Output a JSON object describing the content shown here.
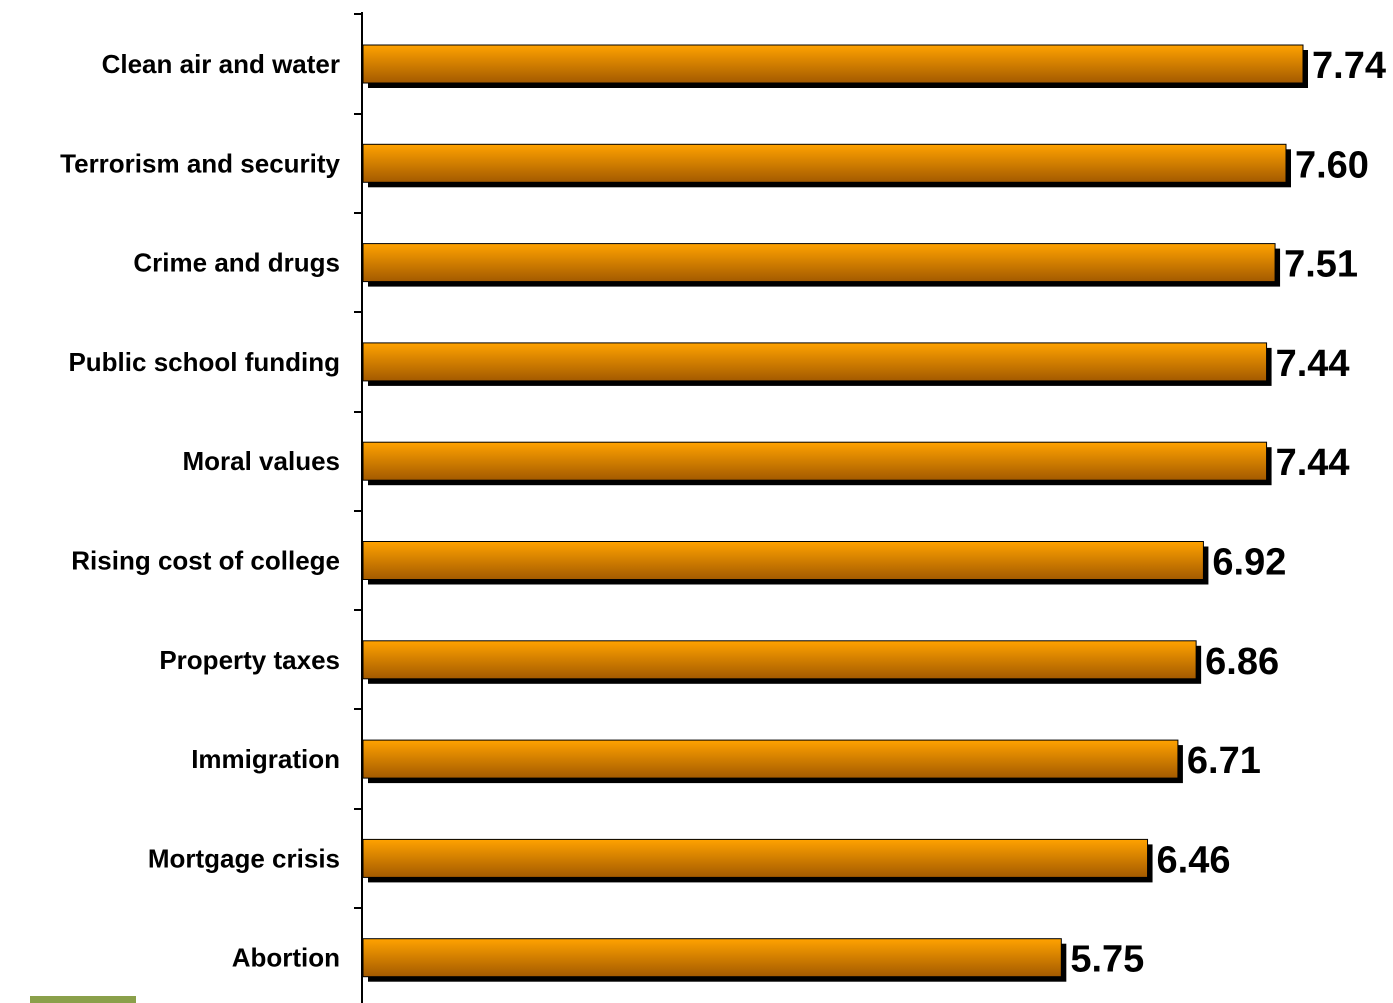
{
  "chart_data": {
    "type": "bar",
    "orientation": "horizontal",
    "title": "",
    "xlabel": "",
    "ylabel": "",
    "categories": [
      "Clean air and water",
      "Terrorism and security",
      "Crime and drugs",
      "Public school funding",
      "Moral values",
      "Rising cost of college",
      "Property taxes",
      "Immigration",
      "Mortgage crisis",
      "Abortion"
    ],
    "values": [
      7.74,
      7.6,
      7.51,
      7.44,
      7.44,
      6.92,
      6.86,
      6.71,
      6.46,
      5.75
    ],
    "value_labels": [
      "7.74",
      "7.60",
      "7.51",
      "7.44",
      "7.44",
      "6.92",
      "6.86",
      "6.71",
      "6.46",
      "5.75"
    ],
    "xlim": [
      0,
      7.74
    ],
    "grid": false,
    "colors": {
      "bar_light": "#ffa200",
      "bar_dark": "#a35a00",
      "shadow": "#000000",
      "accent": "#8aa04a"
    }
  }
}
